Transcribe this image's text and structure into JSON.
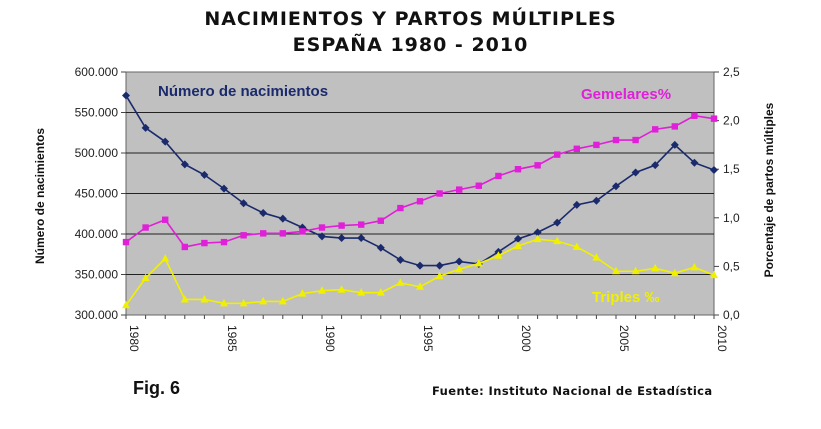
{
  "chart_data": {
    "type": "line",
    "title": "NACIMIENTOS Y PARTOS MÚLTIPLES",
    "subtitle": "ESPAÑA 1980 - 2010",
    "ylabel": "Número de nacimientos",
    "y2label": "Porcentaje de partos múltiples",
    "ylim": [
      300000,
      600000
    ],
    "y2lim": [
      0,
      2.5
    ],
    "x": [
      1980,
      1981,
      1982,
      1983,
      1984,
      1985,
      1986,
      1987,
      1988,
      1989,
      1990,
      1991,
      1992,
      1993,
      1994,
      1995,
      1996,
      1997,
      1998,
      1999,
      2000,
      2001,
      2002,
      2003,
      2004,
      2005,
      2006,
      2007,
      2008,
      2009,
      2010
    ],
    "x_tick_labels": [
      "1980",
      "1985",
      "1990",
      "1995",
      "2000",
      "2005",
      "2010"
    ],
    "y_tick_labels": [
      "300.000",
      "350.000",
      "400.000",
      "450.000",
      "500.000",
      "550.000",
      "600.000"
    ],
    "y2_tick_labels": [
      "0,0",
      "0,5",
      "1,0",
      "1,5",
      "2,0",
      "2,5"
    ],
    "series": [
      {
        "name": "Número de nacimientos",
        "axis": "left",
        "color": "#1a2a6c",
        "marker": "diamond",
        "values": [
          571000,
          531000,
          514000,
          486000,
          473000,
          456000,
          438000,
          426000,
          419000,
          408000,
          397000,
          395000,
          395000,
          383000,
          368000,
          361000,
          361000,
          366000,
          363000,
          378000,
          394000,
          402000,
          414000,
          436000,
          441000,
          459000,
          476000,
          485000,
          510000,
          488000,
          479000
        ]
      },
      {
        "name": "Gemelares%",
        "axis": "right",
        "color": "#e01fd8",
        "marker": "square",
        "values": [
          0.75,
          0.9,
          0.98,
          0.7,
          0.74,
          0.75,
          0.82,
          0.84,
          0.84,
          0.86,
          0.9,
          0.92,
          0.93,
          0.97,
          1.1,
          1.17,
          1.25,
          1.29,
          1.33,
          1.43,
          1.5,
          1.54,
          1.65,
          1.71,
          1.75,
          1.8,
          1.8,
          1.91,
          1.94,
          2.05,
          2.02
        ]
      },
      {
        "name": "Triples ‰",
        "axis": "right",
        "color": "#f0f000",
        "marker": "triangle",
        "values": [
          0.1,
          0.38,
          0.58,
          0.16,
          0.16,
          0.12,
          0.12,
          0.14,
          0.14,
          0.22,
          0.25,
          0.26,
          0.23,
          0.23,
          0.33,
          0.29,
          0.4,
          0.47,
          0.53,
          0.61,
          0.71,
          0.78,
          0.76,
          0.7,
          0.59,
          0.45,
          0.45,
          0.48,
          0.43,
          0.49,
          0.41
        ]
      }
    ],
    "legend_labels": [
      "Número de nacimientos",
      "Gemelares%",
      "Triples ‰"
    ],
    "grid": true,
    "plot_background": "#c0c0c0"
  },
  "figure_label": "Fig. 6",
  "source": "Fuente: Instituto Nacional de Estadística"
}
